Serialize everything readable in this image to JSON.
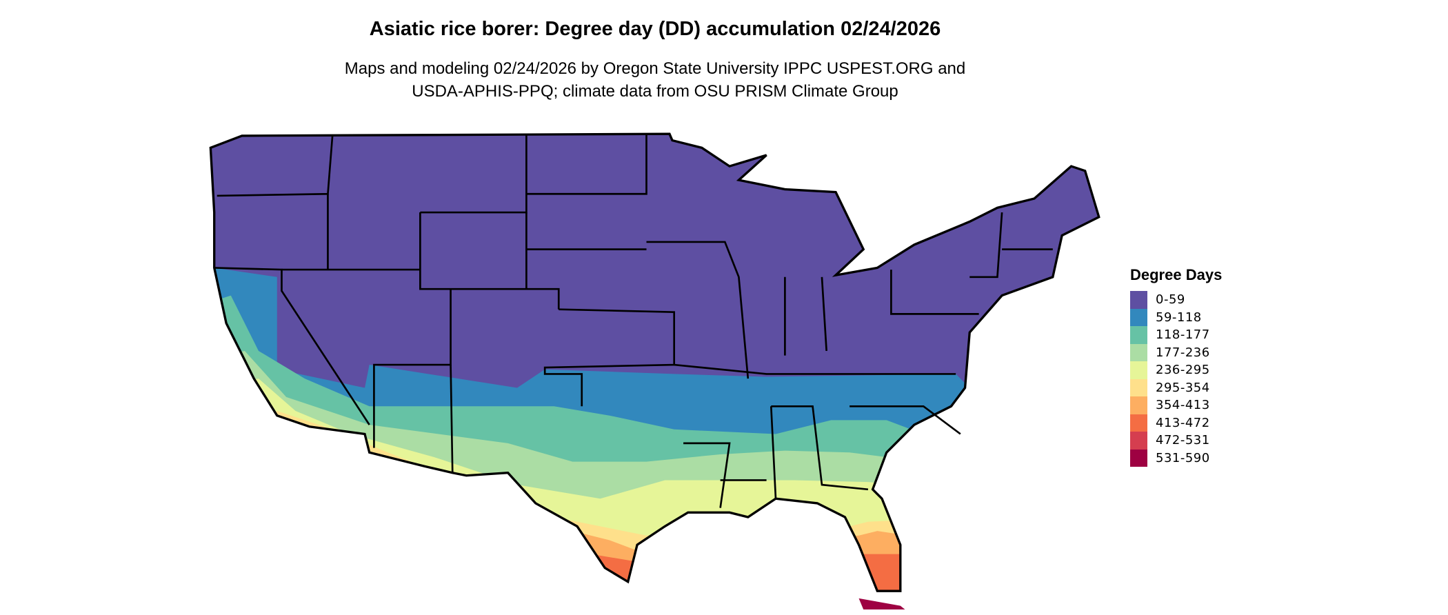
{
  "title": "Asiatic rice borer: Degree day (DD) accumulation 02/24/2026",
  "subtitle_line1": "Maps and modeling 02/24/2026 by Oregon State University IPPC USPEST.ORG and",
  "subtitle_line2": "USDA-APHIS-PPQ; climate data from OSU PRISM Climate Group",
  "legend": {
    "title": "Degree Days",
    "items": [
      {
        "label": "0-59",
        "color": "#5E4FA2"
      },
      {
        "label": "59-118",
        "color": "#3288BD"
      },
      {
        "label": "118-177",
        "color": "#66C2A5"
      },
      {
        "label": "177-236",
        "color": "#ABDDA4"
      },
      {
        "label": "236-295",
        "color": "#E6F598"
      },
      {
        "label": "295-354",
        "color": "#FEE08B"
      },
      {
        "label": "354-413",
        "color": "#FDAE61"
      },
      {
        "label": "413-472",
        "color": "#F46D43"
      },
      {
        "label": "472-531",
        "color": "#D53E4F"
      },
      {
        "label": "531-590",
        "color": "#9E0142"
      }
    ]
  },
  "map": {
    "region": "Contiguous United States",
    "boundaries": "state outlines"
  }
}
